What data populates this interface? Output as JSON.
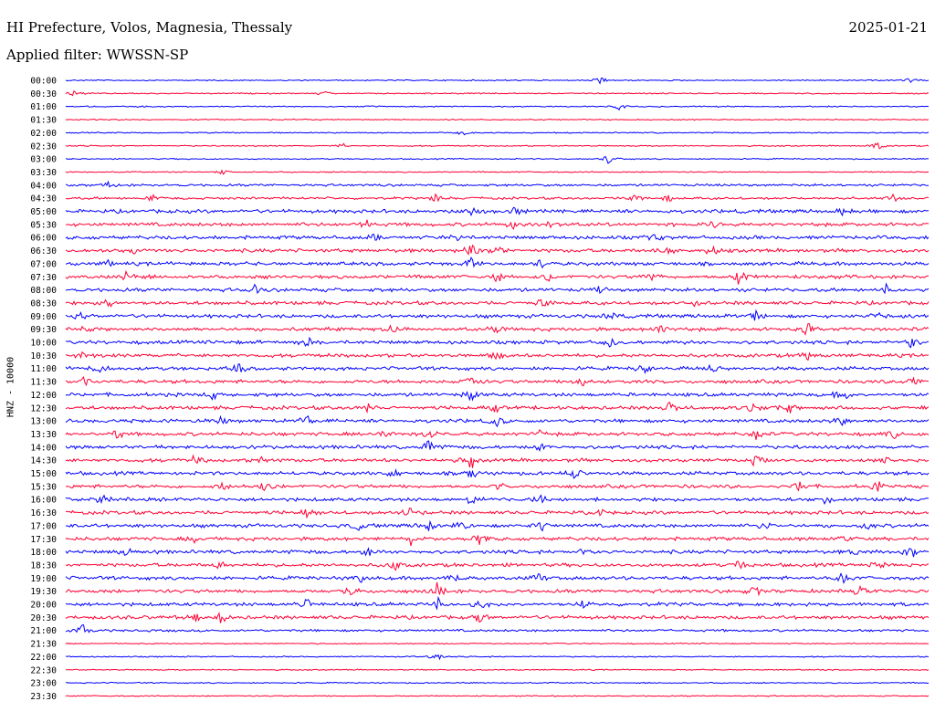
{
  "header": {
    "title": "HI Prefecture, Volos, Magnesia, Thessaly",
    "date": "2025-01-21",
    "filter": "Applied filter: WWSSN-SP"
  },
  "colors": {
    "even_row": "#0000ff",
    "odd_row": "#ff0033",
    "text": "#000000"
  },
  "chart_data": {
    "type": "line",
    "title": "HI Prefecture, Volos, Magnesia, Thessaly",
    "ylabel": "HNZ - 10000",
    "rows": [
      "00:00",
      "00:30",
      "01:00",
      "01:30",
      "02:00",
      "02:30",
      "03:00",
      "03:30",
      "04:00",
      "04:30",
      "05:00",
      "05:30",
      "06:00",
      "06:30",
      "07:00",
      "07:30",
      "08:00",
      "08:30",
      "09:00",
      "09:30",
      "10:00",
      "10:30",
      "11:00",
      "11:30",
      "12:00",
      "12:30",
      "13:00",
      "13:30",
      "14:00",
      "14:30",
      "15:00",
      "15:30",
      "16:00",
      "16:30",
      "17:00",
      "17:30",
      "18:00",
      "18:30",
      "19:00",
      "19:30",
      "20:00",
      "20:30",
      "21:00",
      "21:30",
      "22:00",
      "22:30",
      "23:00",
      "23:30"
    ],
    "noise_level": [
      1,
      1,
      1,
      1,
      1,
      1,
      1,
      1,
      2,
      2,
      3,
      3,
      3,
      3,
      3,
      3,
      3,
      3,
      3,
      3,
      3,
      3,
      3,
      3,
      3,
      3,
      3,
      3,
      3,
      3,
      3,
      3,
      3,
      3,
      3,
      3,
      3,
      3,
      3,
      3,
      3,
      3,
      2,
      1,
      1,
      1,
      1,
      1
    ],
    "events": [
      [
        [
          0.62,
          5
        ],
        [
          0.98,
          4
        ]
      ],
      [
        [
          0.01,
          4
        ],
        [
          0.3,
          3
        ]
      ],
      [
        [
          0.64,
          6
        ]
      ],
      [],
      [
        [
          0.46,
          3
        ]
      ],
      [
        [
          0.32,
          3
        ],
        [
          0.94,
          6
        ]
      ],
      [
        [
          0.63,
          8
        ]
      ],
      [
        [
          0.18,
          3
        ]
      ],
      [
        [
          0.05,
          3
        ]
      ],
      [
        [
          0.1,
          4
        ],
        [
          0.43,
          5
        ],
        [
          0.66,
          5
        ],
        [
          0.7,
          4
        ],
        [
          0.96,
          6
        ]
      ],
      [
        [
          0.47,
          5
        ],
        [
          0.52,
          5
        ],
        [
          0.9,
          5
        ]
      ],
      [
        [
          0.35,
          5
        ],
        [
          0.52,
          6
        ],
        [
          0.56,
          5
        ],
        [
          0.75,
          4
        ]
      ],
      [
        [
          0.36,
          4
        ],
        [
          0.45,
          5
        ],
        [
          0.68,
          5
        ]
      ],
      [
        [
          0.08,
          5
        ],
        [
          0.47,
          8
        ],
        [
          0.5,
          6
        ],
        [
          0.7,
          5
        ],
        [
          0.75,
          5
        ]
      ],
      [
        [
          0.05,
          4
        ],
        [
          0.47,
          8
        ],
        [
          0.55,
          5
        ]
      ],
      [
        [
          0.07,
          6
        ],
        [
          0.5,
          6
        ],
        [
          0.56,
          5
        ],
        [
          0.68,
          5
        ],
        [
          0.78,
          8
        ]
      ],
      [
        [
          0.22,
          5
        ],
        [
          0.62,
          4
        ],
        [
          0.95,
          5
        ]
      ],
      [
        [
          0.05,
          5
        ],
        [
          0.55,
          6
        ],
        [
          0.73,
          5
        ]
      ],
      [
        [
          0.02,
          5
        ],
        [
          0.63,
          5
        ],
        [
          0.8,
          5
        ],
        [
          0.94,
          5
        ]
      ],
      [
        [
          0.02,
          6
        ],
        [
          0.38,
          5
        ],
        [
          0.5,
          7
        ],
        [
          0.69,
          6
        ],
        [
          0.86,
          7
        ]
      ],
      [
        [
          0.28,
          5
        ],
        [
          0.63,
          5
        ],
        [
          0.98,
          8
        ]
      ],
      [
        [
          0.02,
          5
        ],
        [
          0.5,
          6
        ],
        [
          0.86,
          7
        ]
      ],
      [
        [
          0.04,
          6
        ],
        [
          0.2,
          5
        ],
        [
          0.67,
          8
        ],
        [
          0.75,
          5
        ]
      ],
      [
        [
          0.02,
          5
        ],
        [
          0.47,
          6
        ],
        [
          0.6,
          5
        ],
        [
          0.98,
          7
        ]
      ],
      [
        [
          0.17,
          5
        ],
        [
          0.47,
          7
        ],
        [
          0.9,
          8
        ]
      ],
      [
        [
          0.35,
          5
        ],
        [
          0.5,
          6
        ],
        [
          0.7,
          6
        ],
        [
          0.8,
          7
        ],
        [
          0.84,
          6
        ]
      ],
      [
        [
          0.18,
          5
        ],
        [
          0.28,
          5
        ],
        [
          0.5,
          6
        ],
        [
          0.9,
          7
        ]
      ],
      [
        [
          0.06,
          5
        ],
        [
          0.37,
          5
        ],
        [
          0.42,
          8
        ],
        [
          0.55,
          5
        ],
        [
          0.8,
          5
        ],
        [
          0.96,
          6
        ]
      ],
      [
        [
          0.42,
          8
        ],
        [
          0.55,
          6
        ]
      ],
      [
        [
          0.15,
          5
        ],
        [
          0.23,
          6
        ],
        [
          0.47,
          9
        ],
        [
          0.8,
          6
        ],
        [
          0.95,
          5
        ]
      ],
      [
        [
          0.38,
          6
        ],
        [
          0.47,
          7
        ],
        [
          0.59,
          6
        ]
      ],
      [
        [
          0.18,
          5
        ],
        [
          0.23,
          6
        ],
        [
          0.5,
          5
        ],
        [
          0.85,
          6
        ],
        [
          0.94,
          5
        ]
      ],
      [
        [
          0.04,
          5
        ],
        [
          0.47,
          6
        ],
        [
          0.55,
          5
        ],
        [
          0.88,
          5
        ]
      ],
      [
        [
          0.28,
          5
        ],
        [
          0.4,
          5
        ],
        [
          0.62,
          5
        ]
      ],
      [
        [
          0.34,
          5
        ],
        [
          0.42,
          7
        ],
        [
          0.46,
          6
        ],
        [
          0.55,
          6
        ],
        [
          0.81,
          5
        ],
        [
          0.93,
          5
        ]
      ],
      [
        [
          0.15,
          6
        ],
        [
          0.4,
          5
        ],
        [
          0.48,
          6
        ],
        [
          0.9,
          5
        ]
      ],
      [
        [
          0.07,
          5
        ],
        [
          0.35,
          5
        ],
        [
          0.6,
          6
        ],
        [
          0.92,
          6
        ],
        [
          0.98,
          7
        ]
      ],
      [
        [
          0.18,
          6
        ],
        [
          0.38,
          7
        ],
        [
          0.78,
          6
        ],
        [
          0.94,
          6
        ]
      ],
      [
        [
          0.34,
          5
        ],
        [
          0.45,
          7
        ],
        [
          0.55,
          6
        ],
        [
          0.9,
          7
        ]
      ],
      [
        [
          0.33,
          7
        ],
        [
          0.43,
          8
        ],
        [
          0.8,
          6
        ],
        [
          0.92,
          6
        ]
      ],
      [
        [
          0.28,
          5
        ],
        [
          0.43,
          7
        ],
        [
          0.48,
          7
        ],
        [
          0.6,
          5
        ]
      ],
      [
        [
          0.15,
          5
        ],
        [
          0.18,
          7
        ],
        [
          0.48,
          7
        ]
      ],
      [
        [
          0.02,
          8
        ]
      ],
      [],
      [
        [
          0.43,
          5
        ]
      ],
      [],
      [],
      []
    ]
  }
}
